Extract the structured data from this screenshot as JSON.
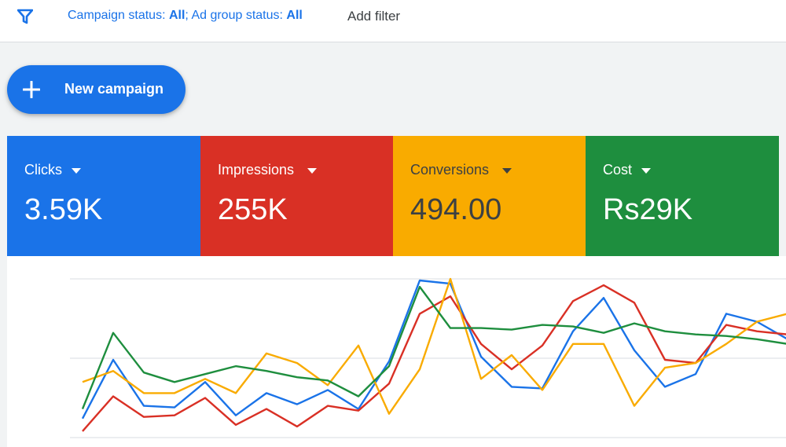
{
  "filter_bar": {
    "icon": "filter-funnel-icon",
    "campaign_status_label": "Campaign status:",
    "campaign_status_value": "All",
    "ad_group_status_label": "Ad group status:",
    "ad_group_status_value": "All",
    "add_filter_label": "Add filter"
  },
  "new_campaign": {
    "icon": "plus-icon",
    "label": "New campaign"
  },
  "metrics": [
    {
      "label": "Clicks",
      "value": "3.59K",
      "color": "#1a73e8"
    },
    {
      "label": "Impressions",
      "value": "255K",
      "color": "#d93025"
    },
    {
      "label": "Conversions",
      "value": "494.00",
      "color": "#f9ab00"
    },
    {
      "label": "Cost",
      "value": "Rs29K",
      "color": "#1e8e3e"
    }
  ],
  "chart_data": {
    "type": "line",
    "grid": true,
    "ylim": [
      0,
      100
    ],
    "x": [
      1,
      2,
      3,
      4,
      5,
      6,
      7,
      8,
      9,
      10,
      11,
      12,
      13,
      14,
      15,
      16,
      17,
      18,
      19,
      20,
      21,
      22,
      23,
      24,
      25
    ],
    "series": [
      {
        "color": "#1a73e8",
        "values": [
          12,
          49,
          20,
          19,
          35,
          14,
          28,
          21,
          30,
          18,
          48,
          99,
          97,
          51,
          32,
          31,
          67,
          88,
          55,
          32,
          40,
          78,
          73,
          62,
          63
        ]
      },
      {
        "color": "#d93025",
        "values": [
          4,
          26,
          13,
          14,
          25,
          8,
          18,
          7,
          20,
          17,
          34,
          78,
          89,
          59,
          43,
          58,
          86,
          96,
          85,
          49,
          47,
          71,
          67,
          65,
          66
        ]
      },
      {
        "color": "#f9ab00",
        "values": [
          35,
          42,
          28,
          28,
          37,
          28,
          53,
          47,
          33,
          58,
          15,
          43,
          100,
          37,
          52,
          30,
          59,
          59,
          20,
          44,
          47,
          59,
          73,
          78,
          79
        ]
      },
      {
        "color": "#1e8e3e",
        "values": [
          18,
          66,
          41,
          35,
          40,
          45,
          42,
          38,
          36,
          26,
          45,
          95,
          69,
          69,
          68,
          71,
          70,
          66,
          72,
          67,
          65,
          64,
          62,
          59,
          60
        ]
      }
    ]
  }
}
